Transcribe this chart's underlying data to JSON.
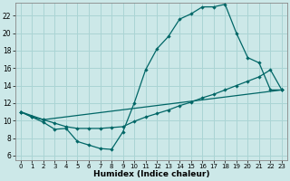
{
  "xlabel": "Humidex (Indice chaleur)",
  "bg_color": "#cce8e8",
  "grid_color": "#aad4d4",
  "line_color": "#006666",
  "xlim": [
    -0.5,
    23.5
  ],
  "ylim": [
    5.5,
    23.5
  ],
  "xticks": [
    0,
    1,
    2,
    3,
    4,
    5,
    6,
    7,
    8,
    9,
    10,
    11,
    12,
    13,
    14,
    15,
    16,
    17,
    18,
    19,
    20,
    21,
    22,
    23
  ],
  "yticks": [
    6,
    8,
    10,
    12,
    14,
    16,
    18,
    20,
    22
  ],
  "line1_x": [
    0,
    1,
    2,
    3,
    4,
    5,
    6,
    7,
    8,
    9,
    10,
    11,
    12,
    13,
    14,
    15,
    16,
    17,
    18,
    19,
    20,
    21,
    22,
    23
  ],
  "line1_y": [
    11.0,
    10.4,
    9.8,
    9.0,
    9.1,
    7.6,
    7.2,
    6.8,
    6.7,
    8.7,
    12.0,
    15.8,
    18.2,
    19.6,
    21.6,
    22.2,
    23.0,
    23.0,
    23.3,
    20.0,
    17.2,
    16.6,
    13.5,
    13.5
  ],
  "line2_x": [
    0,
    1,
    2,
    3,
    4,
    5,
    6,
    7,
    8,
    9,
    10,
    11,
    12,
    13,
    14,
    15,
    16,
    17,
    18,
    19,
    20,
    21,
    22,
    23
  ],
  "line2_y": [
    11.0,
    10.4,
    10.1,
    9.7,
    9.3,
    9.1,
    9.1,
    9.1,
    9.2,
    9.3,
    9.9,
    10.4,
    10.8,
    11.2,
    11.7,
    12.1,
    12.6,
    13.0,
    13.5,
    14.0,
    14.5,
    15.0,
    15.8,
    13.5
  ],
  "line3_x": [
    0,
    2,
    23
  ],
  "line3_y": [
    11.0,
    10.1,
    13.5
  ]
}
